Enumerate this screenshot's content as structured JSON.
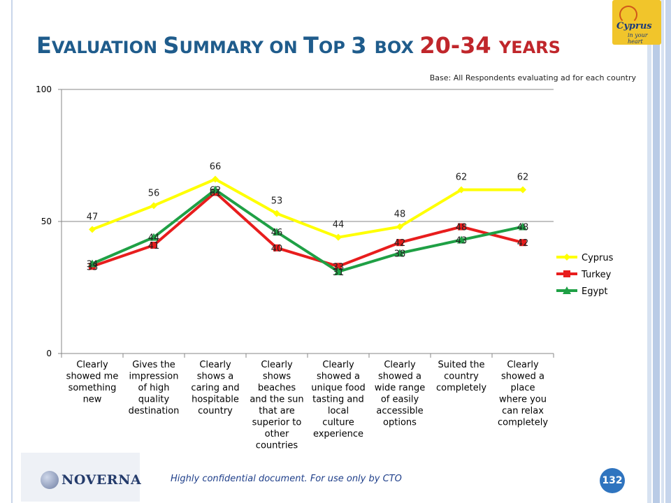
{
  "slide": {
    "title_parts": [
      {
        "text": "E",
        "cls": "big"
      },
      {
        "text": "VALUATION ",
        "cls": "sm"
      },
      {
        "text": "S",
        "cls": "big"
      },
      {
        "text": "UMMARY ON ",
        "cls": "sm"
      },
      {
        "text": "T",
        "cls": "big"
      },
      {
        "text": "OP ",
        "cls": "sm"
      },
      {
        "text": "3 ",
        "cls": "big"
      },
      {
        "text": "BOX ",
        "cls": "sm"
      },
      {
        "text": "20-34 ",
        "cls": "big hl"
      },
      {
        "text": "YEARS",
        "cls": "sm hl"
      }
    ],
    "base_note": "Base: All Respondents evaluating ad for each country",
    "footer_text": "Highly confidential document. For use only by CTO",
    "page_number": "132",
    "footer_logo_text": "NOVERNA",
    "top_logo_text": "Cyprus",
    "top_logo_sub": "in your heart"
  },
  "chart_data": {
    "type": "line",
    "ylim": [
      0,
      100
    ],
    "yticks": [
      0,
      50,
      100
    ],
    "grid": true,
    "legend_position": "right",
    "categories": [
      [
        "Clearly",
        "showed me",
        "something",
        "new"
      ],
      [
        "Gives the",
        "impression",
        "of high",
        "quality",
        "destination"
      ],
      [
        "Clearly",
        "shows a",
        "caring and",
        "hospitable",
        "country"
      ],
      [
        "Clearly",
        "shows",
        "beaches",
        "and the sun",
        "that are",
        "superior to",
        "other",
        "countries"
      ],
      [
        "Clearly",
        "showed a",
        "unique food",
        "tasting and",
        "local",
        "culture",
        "experience"
      ],
      [
        "Clearly",
        "showed a",
        "wide range",
        "of easily",
        "accessible",
        "options"
      ],
      [
        "Suited  the",
        "country",
        "completely"
      ],
      [
        "Clearly",
        "showed a",
        "place",
        "where you",
        "can relax",
        "completely"
      ]
    ],
    "series": [
      {
        "name": "Cyprus",
        "color": "#ffff00",
        "marker": "diamond",
        "values": [
          47,
          56,
          66,
          53,
          44,
          48,
          62,
          62
        ]
      },
      {
        "name": "Turkey",
        "color": "#e81d1d",
        "marker": "square",
        "values": [
          33,
          41,
          61,
          40,
          33,
          42,
          48,
          42
        ]
      },
      {
        "name": "Egypt",
        "color": "#1fa045",
        "marker": "triangle",
        "values": [
          34,
          44,
          62,
          46,
          31,
          38,
          43,
          48
        ]
      }
    ]
  }
}
